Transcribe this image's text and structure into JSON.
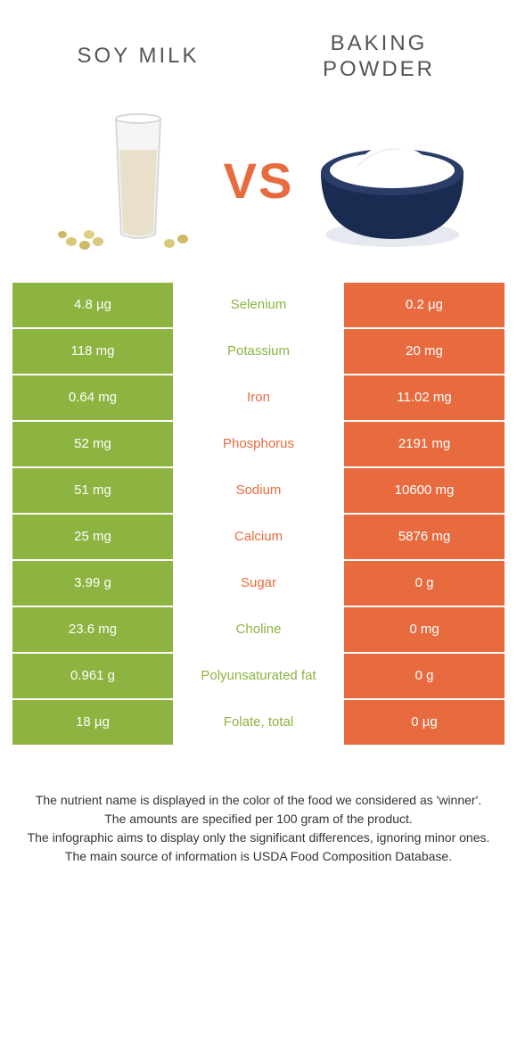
{
  "header": {
    "left_title": "SOY MILK",
    "right_title": "BAKING POWDER",
    "vs_label": "VS"
  },
  "colors": {
    "green": "#8db340",
    "orange": "#e86b3f",
    "mid_bg": "#ffffff",
    "bowl_navy": "#1a2b52",
    "bowl_shadow": "#cfd6e2",
    "glass_fill": "#e8e0cb",
    "glass_outline": "#d0d0d0"
  },
  "rows": [
    {
      "left": "4.8 µg",
      "label": "Selenium",
      "right": "0.2 µg",
      "winner": "left"
    },
    {
      "left": "118 mg",
      "label": "Potassium",
      "right": "20 mg",
      "winner": "left"
    },
    {
      "left": "0.64 mg",
      "label": "Iron",
      "right": "11.02 mg",
      "winner": "right"
    },
    {
      "left": "52 mg",
      "label": "Phosphorus",
      "right": "2191 mg",
      "winner": "right"
    },
    {
      "left": "51 mg",
      "label": "Sodium",
      "right": "10600 mg",
      "winner": "right"
    },
    {
      "left": "25 mg",
      "label": "Calcium",
      "right": "5876 mg",
      "winner": "right"
    },
    {
      "left": "3.99 g",
      "label": "Sugar",
      "right": "0 g",
      "winner": "right"
    },
    {
      "left": "23.6 mg",
      "label": "Choline",
      "right": "0 mg",
      "winner": "left"
    },
    {
      "left": "0.961 g",
      "label": "Polyunsaturated fat",
      "right": "0 g",
      "winner": "left"
    },
    {
      "left": "18 µg",
      "label": "Folate, total",
      "right": "0 µg",
      "winner": "left"
    }
  ],
  "footer": {
    "line1": "The nutrient name is displayed in the color of the food we considered as 'winner'.",
    "line2": "The amounts are specified per 100 gram of the product.",
    "line3": "The infographic aims to display only the significant differences, ignoring minor ones.",
    "line4": "The main source of information is USDA Food Composition Database."
  }
}
